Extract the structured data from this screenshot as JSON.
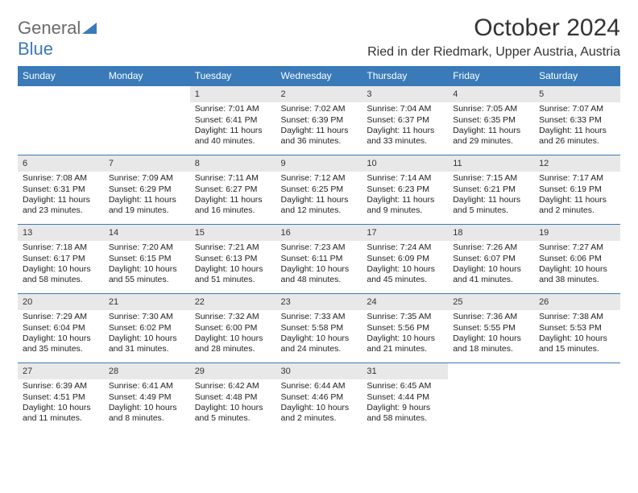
{
  "logo": {
    "part1": "General",
    "part2": "Blue"
  },
  "title": "October 2024",
  "location": "Ried in der Riedmark, Upper Austria, Austria",
  "colors": {
    "header_bg": "#3a7ab8",
    "header_text": "#ffffff",
    "daynum_bg": "#e8e8e8",
    "border": "#3a7ab8",
    "logo_gray": "#6b6b6b",
    "logo_blue": "#3a7ab8"
  },
  "dayNames": [
    "Sunday",
    "Monday",
    "Tuesday",
    "Wednesday",
    "Thursday",
    "Friday",
    "Saturday"
  ],
  "weeks": [
    [
      {
        "empty": true
      },
      {
        "empty": true
      },
      {
        "num": "1",
        "sunrise": "Sunrise: 7:01 AM",
        "sunset": "Sunset: 6:41 PM",
        "daylight": "Daylight: 11 hours and 40 minutes."
      },
      {
        "num": "2",
        "sunrise": "Sunrise: 7:02 AM",
        "sunset": "Sunset: 6:39 PM",
        "daylight": "Daylight: 11 hours and 36 minutes."
      },
      {
        "num": "3",
        "sunrise": "Sunrise: 7:04 AM",
        "sunset": "Sunset: 6:37 PM",
        "daylight": "Daylight: 11 hours and 33 minutes."
      },
      {
        "num": "4",
        "sunrise": "Sunrise: 7:05 AM",
        "sunset": "Sunset: 6:35 PM",
        "daylight": "Daylight: 11 hours and 29 minutes."
      },
      {
        "num": "5",
        "sunrise": "Sunrise: 7:07 AM",
        "sunset": "Sunset: 6:33 PM",
        "daylight": "Daylight: 11 hours and 26 minutes."
      }
    ],
    [
      {
        "num": "6",
        "sunrise": "Sunrise: 7:08 AM",
        "sunset": "Sunset: 6:31 PM",
        "daylight": "Daylight: 11 hours and 23 minutes."
      },
      {
        "num": "7",
        "sunrise": "Sunrise: 7:09 AM",
        "sunset": "Sunset: 6:29 PM",
        "daylight": "Daylight: 11 hours and 19 minutes."
      },
      {
        "num": "8",
        "sunrise": "Sunrise: 7:11 AM",
        "sunset": "Sunset: 6:27 PM",
        "daylight": "Daylight: 11 hours and 16 minutes."
      },
      {
        "num": "9",
        "sunrise": "Sunrise: 7:12 AM",
        "sunset": "Sunset: 6:25 PM",
        "daylight": "Daylight: 11 hours and 12 minutes."
      },
      {
        "num": "10",
        "sunrise": "Sunrise: 7:14 AM",
        "sunset": "Sunset: 6:23 PM",
        "daylight": "Daylight: 11 hours and 9 minutes."
      },
      {
        "num": "11",
        "sunrise": "Sunrise: 7:15 AM",
        "sunset": "Sunset: 6:21 PM",
        "daylight": "Daylight: 11 hours and 5 minutes."
      },
      {
        "num": "12",
        "sunrise": "Sunrise: 7:17 AM",
        "sunset": "Sunset: 6:19 PM",
        "daylight": "Daylight: 11 hours and 2 minutes."
      }
    ],
    [
      {
        "num": "13",
        "sunrise": "Sunrise: 7:18 AM",
        "sunset": "Sunset: 6:17 PM",
        "daylight": "Daylight: 10 hours and 58 minutes."
      },
      {
        "num": "14",
        "sunrise": "Sunrise: 7:20 AM",
        "sunset": "Sunset: 6:15 PM",
        "daylight": "Daylight: 10 hours and 55 minutes."
      },
      {
        "num": "15",
        "sunrise": "Sunrise: 7:21 AM",
        "sunset": "Sunset: 6:13 PM",
        "daylight": "Daylight: 10 hours and 51 minutes."
      },
      {
        "num": "16",
        "sunrise": "Sunrise: 7:23 AM",
        "sunset": "Sunset: 6:11 PM",
        "daylight": "Daylight: 10 hours and 48 minutes."
      },
      {
        "num": "17",
        "sunrise": "Sunrise: 7:24 AM",
        "sunset": "Sunset: 6:09 PM",
        "daylight": "Daylight: 10 hours and 45 minutes."
      },
      {
        "num": "18",
        "sunrise": "Sunrise: 7:26 AM",
        "sunset": "Sunset: 6:07 PM",
        "daylight": "Daylight: 10 hours and 41 minutes."
      },
      {
        "num": "19",
        "sunrise": "Sunrise: 7:27 AM",
        "sunset": "Sunset: 6:06 PM",
        "daylight": "Daylight: 10 hours and 38 minutes."
      }
    ],
    [
      {
        "num": "20",
        "sunrise": "Sunrise: 7:29 AM",
        "sunset": "Sunset: 6:04 PM",
        "daylight": "Daylight: 10 hours and 35 minutes."
      },
      {
        "num": "21",
        "sunrise": "Sunrise: 7:30 AM",
        "sunset": "Sunset: 6:02 PM",
        "daylight": "Daylight: 10 hours and 31 minutes."
      },
      {
        "num": "22",
        "sunrise": "Sunrise: 7:32 AM",
        "sunset": "Sunset: 6:00 PM",
        "daylight": "Daylight: 10 hours and 28 minutes."
      },
      {
        "num": "23",
        "sunrise": "Sunrise: 7:33 AM",
        "sunset": "Sunset: 5:58 PM",
        "daylight": "Daylight: 10 hours and 24 minutes."
      },
      {
        "num": "24",
        "sunrise": "Sunrise: 7:35 AM",
        "sunset": "Sunset: 5:56 PM",
        "daylight": "Daylight: 10 hours and 21 minutes."
      },
      {
        "num": "25",
        "sunrise": "Sunrise: 7:36 AM",
        "sunset": "Sunset: 5:55 PM",
        "daylight": "Daylight: 10 hours and 18 minutes."
      },
      {
        "num": "26",
        "sunrise": "Sunrise: 7:38 AM",
        "sunset": "Sunset: 5:53 PM",
        "daylight": "Daylight: 10 hours and 15 minutes."
      }
    ],
    [
      {
        "num": "27",
        "sunrise": "Sunrise: 6:39 AM",
        "sunset": "Sunset: 4:51 PM",
        "daylight": "Daylight: 10 hours and 11 minutes."
      },
      {
        "num": "28",
        "sunrise": "Sunrise: 6:41 AM",
        "sunset": "Sunset: 4:49 PM",
        "daylight": "Daylight: 10 hours and 8 minutes."
      },
      {
        "num": "29",
        "sunrise": "Sunrise: 6:42 AM",
        "sunset": "Sunset: 4:48 PM",
        "daylight": "Daylight: 10 hours and 5 minutes."
      },
      {
        "num": "30",
        "sunrise": "Sunrise: 6:44 AM",
        "sunset": "Sunset: 4:46 PM",
        "daylight": "Daylight: 10 hours and 2 minutes."
      },
      {
        "num": "31",
        "sunrise": "Sunrise: 6:45 AM",
        "sunset": "Sunset: 4:44 PM",
        "daylight": "Daylight: 9 hours and 58 minutes."
      },
      {
        "empty": true
      },
      {
        "empty": true
      }
    ]
  ]
}
